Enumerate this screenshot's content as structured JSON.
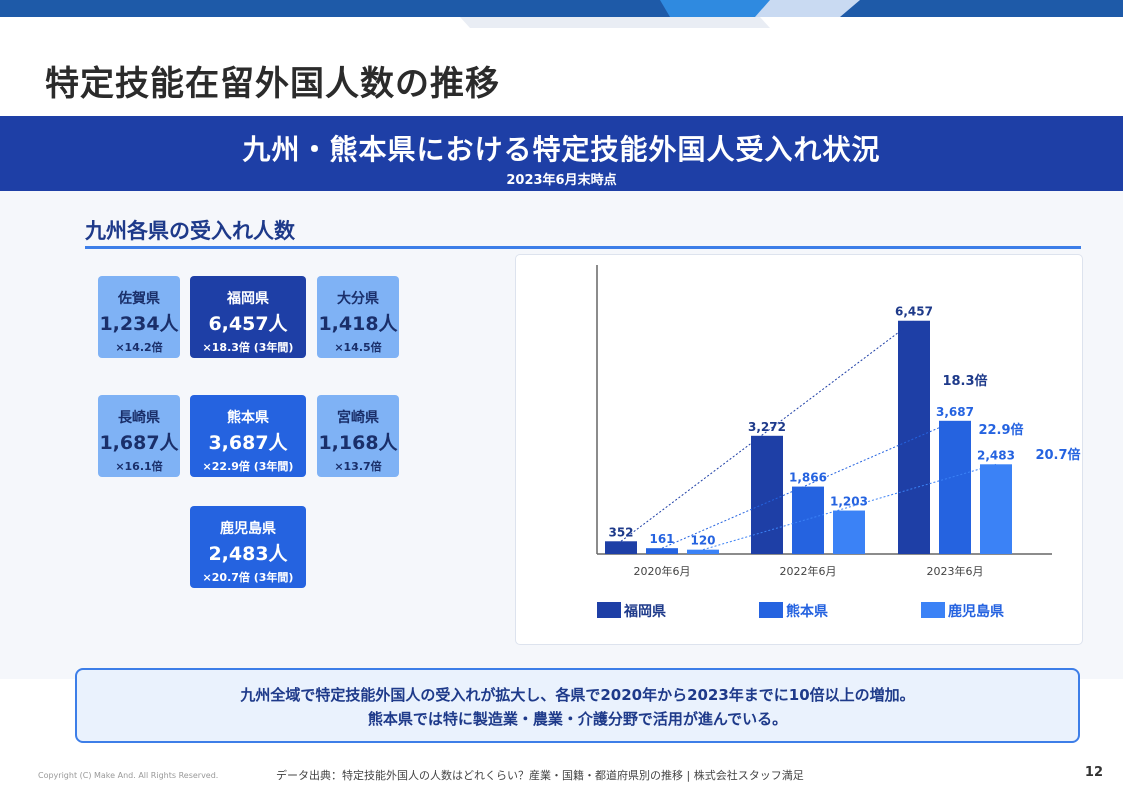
{
  "header": {
    "page_title": "特定技能在留外国人数の推移",
    "banner_title": "九州・熊本県における特定技能外国人受入れ状況",
    "banner_subtitle": "2023年6月末時点"
  },
  "section": {
    "title": "九州各県の受入れ人数"
  },
  "prefectures": [
    {
      "name": "佐賀県",
      "count": "1,234人",
      "ratio": "×14.2倍",
      "style": "light"
    },
    {
      "name": "福岡県",
      "count": "6,457人",
      "ratio": "×18.3倍 (3年間)",
      "style": "dark"
    },
    {
      "name": "大分県",
      "count": "1,418人",
      "ratio": "×14.5倍",
      "style": "light"
    },
    {
      "name": "長崎県",
      "count": "1,687人",
      "ratio": "×16.1倍",
      "style": "light"
    },
    {
      "name": "熊本県",
      "count": "3,687人",
      "ratio": "×22.9倍 (3年間)",
      "style": "mid"
    },
    {
      "name": "宮崎県",
      "count": "1,168人",
      "ratio": "×13.7倍",
      "style": "light"
    },
    {
      "name": "鹿児島県",
      "count": "2,483人",
      "ratio": "×20.7倍 (3年間)",
      "style": "mid"
    }
  ],
  "chart_data": {
    "type": "bar",
    "categories": [
      "2020年6月",
      "2022年6月",
      "2023年6月"
    ],
    "series": [
      {
        "name": "福岡県",
        "values": [
          352,
          3272,
          6457
        ],
        "labels": [
          "352",
          "3,272",
          "6,457"
        ],
        "color": "#1e3fa6",
        "growth_label": "18.3倍"
      },
      {
        "name": "熊本県",
        "values": [
          161,
          1866,
          3687
        ],
        "labels": [
          "161",
          "1,866",
          "3,687"
        ],
        "color": "#2563e0",
        "growth_label": "22.9倍"
      },
      {
        "name": "鹿児島県",
        "values": [
          120,
          1203,
          2483
        ],
        "labels": [
          "120",
          "1,203",
          "2,483"
        ],
        "color": "#3b82f6",
        "growth_label": "20.7倍"
      }
    ],
    "ylim": [
      0,
      8000
    ],
    "grid": false,
    "legend_placement": "bottom"
  },
  "summary": {
    "line1": "九州全域で特定技能外国人の受入れが拡大し、各県で2020年から2023年までに10倍以上の増加。",
    "line2": "熊本県では特に製造業・農業・介護分野で活用が進んでいる。"
  },
  "footer": {
    "copyright": "Copyright (C) Make And. All Rights Reserved.",
    "source": "データ出典：特定技能外国人の人数はどれくらい？産業・国籍・都道府県別の推移 | 株式会社スタッフ満足",
    "page_number": "12"
  },
  "colors": {
    "primary_dark": "#1e3fa6",
    "primary_mid": "#2563e0",
    "primary_light": "#7fb2f5",
    "accent_line": "#3d7ee8"
  }
}
